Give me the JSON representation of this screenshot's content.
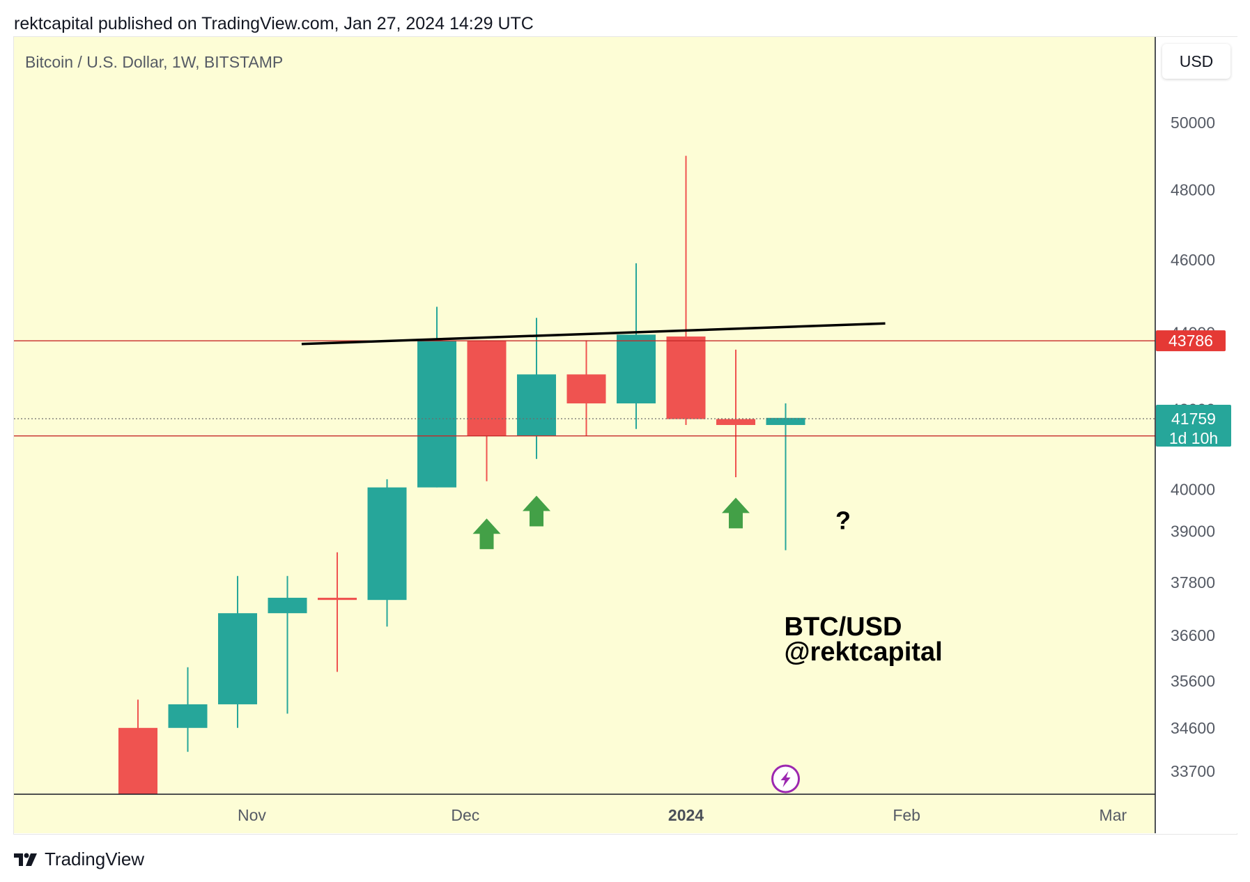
{
  "header": {
    "attribution": "rektcapital published on TradingView.com, Jan 27, 2024 14:29 UTC"
  },
  "chart_header": {
    "symbol_title": "Bitcoin / U.S. Dollar, 1W, BITSTAMP",
    "currency_button": "USD"
  },
  "footer": {
    "brand": "TradingView"
  },
  "colors": {
    "background": "#fdfdd6",
    "bull": "#26a69a",
    "bear": "#ef5350",
    "level_line": "#c62828",
    "trendline": "#000000",
    "arrow": "#43a047",
    "lightning": "#9c27b0"
  },
  "chart_data": {
    "type": "candlestick",
    "title": "Bitcoin / U.S. Dollar, 1W, BITSTAMP",
    "y_scale": "log",
    "ylim": [
      32700,
      52500
    ],
    "y_ticks": [
      50000,
      48000,
      46000,
      39000,
      37800,
      36600,
      35600,
      34600,
      33700
    ],
    "x_ticks": [
      {
        "label": "Nov",
        "date": "2023-11-01"
      },
      {
        "label": "Dec",
        "date": "2023-12-01"
      },
      {
        "label": "2024",
        "date": "2024-01-01",
        "bold": true
      },
      {
        "label": "Feb",
        "date": "2024-02-01"
      },
      {
        "label": "Mar",
        "date": "2024-03-01"
      }
    ],
    "candles": [
      {
        "date": "2023-10-16",
        "open": 34600,
        "high": 35200,
        "low": 31000,
        "close": 31500
      },
      {
        "date": "2023-10-23",
        "open": 34600,
        "high": 35900,
        "low": 34100,
        "close": 35100
      },
      {
        "date": "2023-10-30",
        "open": 35100,
        "high": 37950,
        "low": 34600,
        "close": 37100
      },
      {
        "date": "2023-11-06",
        "open": 37100,
        "high": 37950,
        "low": 34900,
        "close": 37450
      },
      {
        "date": "2023-11-13",
        "open": 37450,
        "high": 38500,
        "low": 35800,
        "close": 37400
      },
      {
        "date": "2023-11-20",
        "open": 37400,
        "high": 40250,
        "low": 36800,
        "close": 40050
      },
      {
        "date": "2023-11-27",
        "open": 40050,
        "high": 44700,
        "low": 40050,
        "close": 43800
      },
      {
        "date": "2023-12-04",
        "open": 43800,
        "high": 43800,
        "low": 40200,
        "close": 41320
      },
      {
        "date": "2023-12-11",
        "open": 41320,
        "high": 44400,
        "low": 40750,
        "close": 42900
      },
      {
        "date": "2023-12-18",
        "open": 42900,
        "high": 43800,
        "low": 41320,
        "close": 42150
      },
      {
        "date": "2023-12-25",
        "open": 42150,
        "high": 45900,
        "low": 41500,
        "close": 43950
      },
      {
        "date": "2024-01-01",
        "open": 43900,
        "high": 49000,
        "low": 41600,
        "close": 41750
      },
      {
        "date": "2024-01-08",
        "open": 41750,
        "high": 43550,
        "low": 40300,
        "close": 41600
      },
      {
        "date": "2024-01-15",
        "open": 41600,
        "high": 42150,
        "low": 38550,
        "close": 41780
      }
    ],
    "horizontal_levels": [
      {
        "value": 43786,
        "label": "43786"
      },
      {
        "value": 41325,
        "label": "41325"
      }
    ],
    "current_price": {
      "value": 41759,
      "label": "41759",
      "countdown": "1d 10h"
    },
    "trendline": {
      "from": {
        "date": "2023-11-08",
        "value": 43700
      },
      "to": {
        "date": "2024-01-29",
        "value": 44250
      }
    },
    "arrows": [
      {
        "date": "2023-12-04",
        "value": 39300
      },
      {
        "date": "2023-12-11",
        "value": 39850
      },
      {
        "date": "2024-01-08",
        "value": 39800
      }
    ],
    "annotations": [
      {
        "text": "?",
        "date": "2024-01-22",
        "value": 39050
      },
      {
        "text": "BTC/USD",
        "date": "2024-01-15",
        "value": 36600
      },
      {
        "text": "@rektcapital",
        "date": "2024-01-15",
        "value": 36050
      }
    ]
  }
}
